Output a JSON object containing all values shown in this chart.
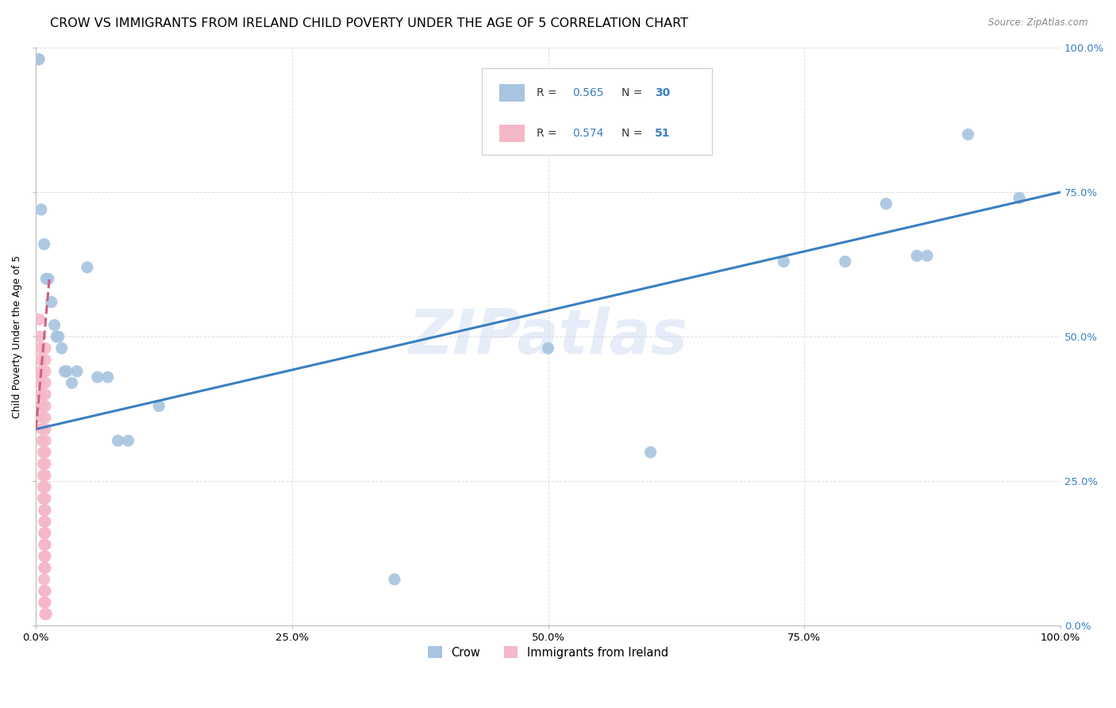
{
  "title": "CROW VS IMMIGRANTS FROM IRELAND CHILD POVERTY UNDER THE AGE OF 5 CORRELATION CHART",
  "source": "Source: ZipAtlas.com",
  "ylabel": "Child Poverty Under the Age of 5",
  "watermark": "ZIPatlas",
  "crow_R": 0.565,
  "crow_N": 30,
  "ireland_R": 0.574,
  "ireland_N": 51,
  "crow_color": "#a8c4e0",
  "ireland_color": "#f4b8c8",
  "trendline_crow_color": "#3a7fc1",
  "trendline_ireland_color": "#d06080",
  "crow_points": [
    [
      0.003,
      0.98
    ],
    [
      0.005,
      0.72
    ],
    [
      0.008,
      0.66
    ],
    [
      0.01,
      0.6
    ],
    [
      0.012,
      0.6
    ],
    [
      0.015,
      0.56
    ],
    [
      0.018,
      0.52
    ],
    [
      0.02,
      0.5
    ],
    [
      0.022,
      0.5
    ],
    [
      0.025,
      0.48
    ],
    [
      0.028,
      0.44
    ],
    [
      0.03,
      0.44
    ],
    [
      0.035,
      0.42
    ],
    [
      0.04,
      0.44
    ],
    [
      0.05,
      0.62
    ],
    [
      0.06,
      0.43
    ],
    [
      0.07,
      0.43
    ],
    [
      0.08,
      0.32
    ],
    [
      0.09,
      0.32
    ],
    [
      0.12,
      0.38
    ],
    [
      0.35,
      0.08
    ],
    [
      0.5,
      0.48
    ],
    [
      0.6,
      0.3
    ],
    [
      0.73,
      0.63
    ],
    [
      0.79,
      0.63
    ],
    [
      0.83,
      0.73
    ],
    [
      0.86,
      0.64
    ],
    [
      0.87,
      0.64
    ],
    [
      0.91,
      0.85
    ],
    [
      0.96,
      0.74
    ]
  ],
  "ireland_points": [
    [
      0.002,
      0.98
    ],
    [
      0.003,
      0.53
    ],
    [
      0.004,
      0.5
    ],
    [
      0.004,
      0.48
    ],
    [
      0.004,
      0.46
    ],
    [
      0.005,
      0.44
    ],
    [
      0.005,
      0.43
    ],
    [
      0.005,
      0.42
    ],
    [
      0.005,
      0.4
    ],
    [
      0.006,
      0.38
    ],
    [
      0.006,
      0.36
    ],
    [
      0.006,
      0.34
    ],
    [
      0.006,
      0.32
    ],
    [
      0.007,
      0.3
    ],
    [
      0.007,
      0.28
    ],
    [
      0.007,
      0.26
    ],
    [
      0.007,
      0.24
    ],
    [
      0.007,
      0.22
    ],
    [
      0.008,
      0.2
    ],
    [
      0.008,
      0.18
    ],
    [
      0.008,
      0.16
    ],
    [
      0.008,
      0.14
    ],
    [
      0.008,
      0.12
    ],
    [
      0.008,
      0.1
    ],
    [
      0.008,
      0.08
    ],
    [
      0.008,
      0.06
    ],
    [
      0.008,
      0.04
    ],
    [
      0.009,
      0.48
    ],
    [
      0.009,
      0.46
    ],
    [
      0.009,
      0.44
    ],
    [
      0.009,
      0.42
    ],
    [
      0.009,
      0.4
    ],
    [
      0.009,
      0.38
    ],
    [
      0.009,
      0.36
    ],
    [
      0.009,
      0.34
    ],
    [
      0.009,
      0.32
    ],
    [
      0.009,
      0.3
    ],
    [
      0.009,
      0.28
    ],
    [
      0.009,
      0.26
    ],
    [
      0.009,
      0.24
    ],
    [
      0.009,
      0.22
    ],
    [
      0.009,
      0.2
    ],
    [
      0.009,
      0.18
    ],
    [
      0.009,
      0.16
    ],
    [
      0.009,
      0.14
    ],
    [
      0.009,
      0.12
    ],
    [
      0.009,
      0.1
    ],
    [
      0.009,
      0.06
    ],
    [
      0.009,
      0.04
    ],
    [
      0.009,
      0.02
    ],
    [
      0.01,
      0.02
    ]
  ],
  "crow_trend": [
    0.0,
    1.0,
    0.34,
    0.75
  ],
  "ireland_trend_x0": 0.0,
  "ireland_trend_x1": 0.013,
  "ireland_trend_y0": 0.34,
  "ireland_trend_y1": 0.6,
  "xlim": [
    0.0,
    1.0
  ],
  "ylim": [
    0.0,
    1.0
  ],
  "xticks": [
    0.0,
    0.25,
    0.5,
    0.75,
    1.0
  ],
  "yticks": [
    0.0,
    0.25,
    0.5,
    0.75,
    1.0
  ],
  "xtick_labels": [
    "0.0%",
    "25.0%",
    "50.0%",
    "75.0%",
    "100.0%"
  ],
  "ytick_labels_right": [
    "0.0%",
    "25.0%",
    "50.0%",
    "75.0%",
    "100.0%"
  ],
  "marker_size": 120,
  "title_fontsize": 11.5,
  "label_fontsize": 9,
  "tick_fontsize": 9.5
}
